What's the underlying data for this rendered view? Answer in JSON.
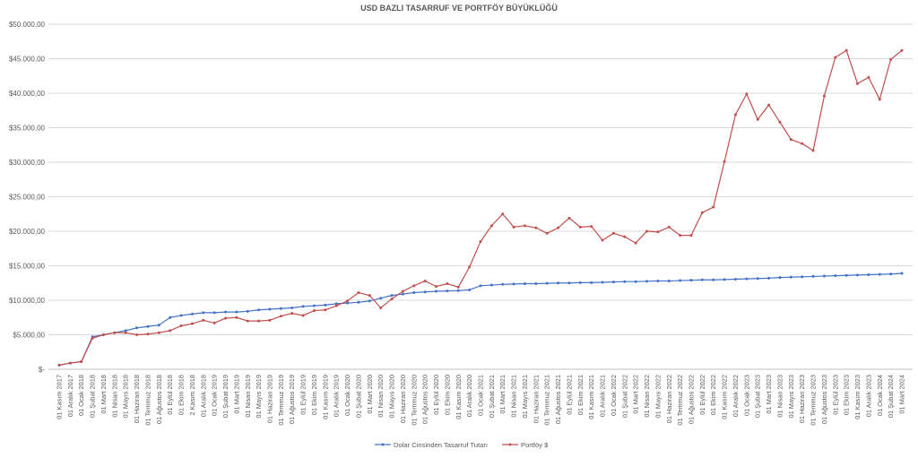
{
  "chart_data": {
    "type": "line",
    "title": "USD BAZLI TASARRUF VE PORTFÖY BÜYÜKLÜĞÜ",
    "xlabel": "",
    "ylabel": "",
    "ylim": [
      0,
      50000
    ],
    "yticks": [
      {
        "value": 0,
        "label": "$-"
      },
      {
        "value": 5000,
        "label": "$5.000,00"
      },
      {
        "value": 10000,
        "label": "$10.000,00"
      },
      {
        "value": 15000,
        "label": "$15.000,00"
      },
      {
        "value": 20000,
        "label": "$20.000,00"
      },
      {
        "value": 25000,
        "label": "$25.000,00"
      },
      {
        "value": 30000,
        "label": "$30.000,00"
      },
      {
        "value": 35000,
        "label": "$35.000,00"
      },
      {
        "value": 40000,
        "label": "$40.000,00"
      },
      {
        "value": 45000,
        "label": "$45.000,00"
      },
      {
        "value": 50000,
        "label": "$50.000,00"
      }
    ],
    "grid": true,
    "legend_position": "bottom",
    "categories": [
      "01 Kasım 2017",
      "01 Aralık 2017",
      "01 Ocak 2018",
      "01 Şubat 2018",
      "01 Mart 2018",
      "01 Nisan 2018",
      "01 Mayıs 2018",
      "01 Haziran 2018",
      "01 Temmuz 2018",
      "01 Ağustos 2018",
      "01 Eylül 2018",
      "01 Ekim 2018",
      "2 Kasım 2018",
      "01 Aralık 2018",
      "01 Ocak 2019",
      "01 Şubat 2019",
      "01 Mart 2019",
      "01 Nisan 2019",
      "01 Mayıs 2019",
      "01 Haziran 2019",
      "01 Temmuz 2019",
      "01 Ağustos 2019",
      "01 Eylül 2019",
      "01 Ekim 2019",
      "01 Kasım 2019",
      "01 Aralık 2019",
      "01 Ocak 2020",
      "01 Şubat 2020",
      "01 Mart 2020",
      "01 Nisan 2020",
      "01 Mayıs 2020",
      "01 Haziran 2020",
      "01 Temmuz 2020",
      "01 Ağustos 2020",
      "01 Eylül 2020",
      "01 Ekim 2020",
      "01 Kasım 2020",
      "01 Aralık 2020",
      "01 Ocak 2021",
      "01 Şubat 2021",
      "01 Mart 2021",
      "01 Nisan 2021",
      "01 Mayıs 2021",
      "01 Haziran 2021",
      "01 Temmuz 2021",
      "01 Ağustos 2021",
      "01 Eylül 2021",
      "01 Ekim 2021",
      "01 Kasım 2021",
      "01 Aralık 2021",
      "01 Ocak 2022",
      "01 Şubat 2022",
      "01 Mart 2022",
      "01 Nisan 2022",
      "01 Mayıs 2022",
      "01 Haziran 2022",
      "01 Temmuz 2022",
      "01 Ağustos 2022",
      "01 Eylül 2022",
      "01 Ekim 2022",
      "01 Kasım 2022",
      "01 Aralık 2022",
      "01 Ocak 2023",
      "01 Şubat 2023",
      "01 Mart 2023",
      "01 Nisan 2023",
      "01 Mayıs 2023",
      "01 Haziran 2023",
      "01 Temmuz 2023",
      "01 Ağustos 2023",
      "01 Eylül 2023",
      "01 Ekim 2023",
      "01 Kasım 2023",
      "01 Aralık 2023",
      "01 Ocak 2024",
      "01 Şubat 2024",
      "01 Mart 2024"
    ],
    "series": [
      {
        "name": "Dolar Cinsinden Tasarruf Tutarı",
        "color": "#4472c4",
        "values": [
          600,
          900,
          1100,
          4700,
          5000,
          5300,
          5600,
          6000,
          6200,
          6400,
          7500,
          7800,
          8000,
          8200,
          8200,
          8300,
          8300,
          8400,
          8600,
          8700,
          8800,
          8900,
          9100,
          9200,
          9300,
          9500,
          9600,
          9700,
          9900,
          10300,
          10700,
          10900,
          11100,
          11200,
          11300,
          11350,
          11400,
          11500,
          12100,
          12200,
          12300,
          12350,
          12400,
          12400,
          12450,
          12500,
          12500,
          12550,
          12550,
          12600,
          12650,
          12700,
          12700,
          12750,
          12800,
          12800,
          12850,
          12900,
          12950,
          12950,
          13000,
          13050,
          13100,
          13150,
          13200,
          13300,
          13350,
          13400,
          13450,
          13500,
          13550,
          13600,
          13650,
          13700,
          13750,
          13800,
          13900
        ]
      },
      {
        "name": "Portföy $",
        "color": "#c0504d",
        "values": [
          600,
          900,
          1100,
          4500,
          5000,
          5300,
          5300,
          5000,
          5100,
          5300,
          5600,
          6300,
          6600,
          7100,
          6700,
          7400,
          7500,
          7000,
          7000,
          7100,
          7700,
          8100,
          7800,
          8500,
          8600,
          9200,
          9900,
          11100,
          10700,
          8900,
          10200,
          11300,
          12100,
          12800,
          12000,
          12400,
          11900,
          14800,
          18500,
          20800,
          22500,
          20600,
          20800,
          20500,
          19700,
          20500,
          21900,
          20600,
          20700,
          18700,
          19700,
          19200,
          18300,
          20000,
          19900,
          20600,
          19400,
          19400,
          22700,
          23500,
          30100,
          36900,
          39900,
          36200,
          38300,
          35800,
          33300,
          32700,
          31700,
          39600,
          45200,
          46200,
          41400,
          42300,
          39100,
          44900,
          46200
        ]
      }
    ]
  }
}
